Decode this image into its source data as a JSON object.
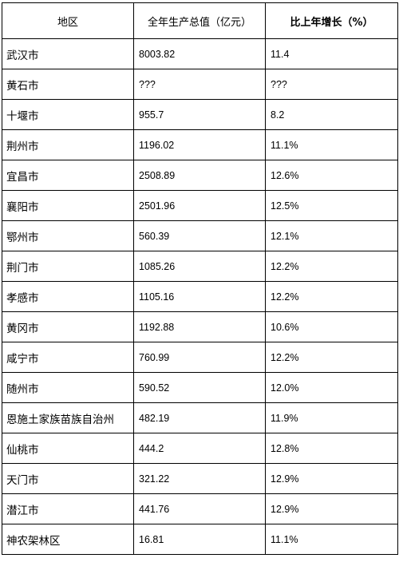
{
  "table": {
    "headers": {
      "region": "地区",
      "gdp": "全年生产总值（亿元）",
      "growth": "比上年增长（%）"
    },
    "rows": [
      {
        "region": "武汉市",
        "gdp": "8003.82",
        "growth": "11.4"
      },
      {
        "region": "黄石市",
        "gdp": "???",
        "growth": "???"
      },
      {
        "region": "十堰市",
        "gdp": "955.7",
        "growth": "8.2"
      },
      {
        "region": "荆州市",
        "gdp": "1196.02",
        "growth": "11.1%"
      },
      {
        "region": "宜昌市",
        "gdp": "2508.89",
        "growth": "12.6%"
      },
      {
        "region": "襄阳市",
        "gdp": "2501.96",
        "growth": "12.5%"
      },
      {
        "region": "鄂州市",
        "gdp": "560.39",
        "growth": "12.1%"
      },
      {
        "region": "荆门市",
        "gdp": "1085.26",
        "growth": "12.2%"
      },
      {
        "region": "孝感市",
        "gdp": "1105.16",
        "growth": "12.2%"
      },
      {
        "region": "黄冈市",
        "gdp": "1192.88",
        "growth": "10.6%"
      },
      {
        "region": "咸宁市",
        "gdp": "760.99",
        "growth": "12.2%"
      },
      {
        "region": "随州市",
        "gdp": "590.52",
        "growth": "12.0%"
      },
      {
        "region": "恩施土家族苗族自治州",
        "gdp": "482.19",
        "growth": "11.9%"
      },
      {
        "region": "仙桃市",
        "gdp": "444.2",
        "growth": "12.8%"
      },
      {
        "region": "天门市",
        "gdp": "321.22",
        "growth": "12.9%"
      },
      {
        "region": "潜江市",
        "gdp": "441.76",
        "growth": "12.9%"
      },
      {
        "region": "神农架林区",
        "gdp": "16.81",
        "growth": "11.1%"
      }
    ]
  }
}
